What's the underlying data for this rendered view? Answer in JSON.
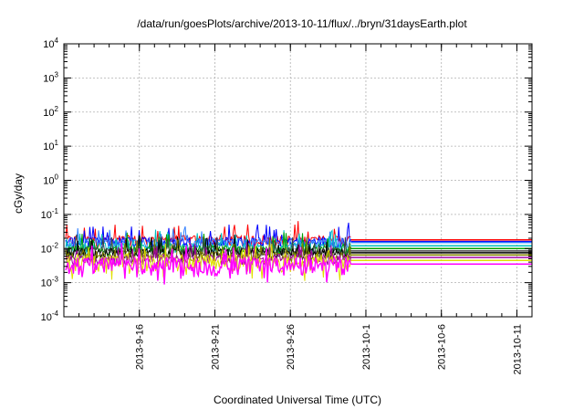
{
  "chart_data": {
    "type": "line",
    "title": "/data/run/goesPlots/archive/2013-10-11/flux/../bryn/31daysEarth.plot",
    "xlabel": "Coordinated Universal Time (UTC)",
    "ylabel": "cGy/day",
    "yscale": "log",
    "ylim": [
      0.0001,
      10000
    ],
    "xlim": [
      "2013-09-11",
      "2013-10-12"
    ],
    "y_ticks": [
      {
        "base": "10",
        "exp": "-4",
        "value": 0.0001
      },
      {
        "base": "10",
        "exp": "-3",
        "value": 0.001
      },
      {
        "base": "10",
        "exp": "-2",
        "value": 0.01
      },
      {
        "base": "10",
        "exp": "-1",
        "value": 0.1
      },
      {
        "base": "10",
        "exp": "0",
        "value": 1
      },
      {
        "base": "10",
        "exp": "1",
        "value": 10
      },
      {
        "base": "10",
        "exp": "2",
        "value": 100
      },
      {
        "base": "10",
        "exp": "3",
        "value": 1000
      },
      {
        "base": "10",
        "exp": "4",
        "value": 10000
      }
    ],
    "x_ticks": [
      {
        "label": "2013-9-16",
        "date": "2013-09-16"
      },
      {
        "label": "2013-9-21",
        "date": "2013-09-21"
      },
      {
        "label": "2013-9-26",
        "date": "2013-09-26"
      },
      {
        "label": "2013-10-1",
        "date": "2013-10-01"
      },
      {
        "label": "2013-10-6",
        "date": "2013-10-06"
      },
      {
        "label": "2013-10-11",
        "date": "2013-10-11"
      }
    ],
    "grid": true,
    "measured_end": "2013-09-30",
    "series": [
      {
        "color": "#ff0000",
        "x": [
          "2013-09-11",
          "2013-09-30",
          "2013-10-12"
        ],
        "y": [
          0.018,
          0.018,
          0.018
        ]
      },
      {
        "color": "#0000ff",
        "x": [
          "2013-09-11",
          "2013-09-30",
          "2013-10-12"
        ],
        "y": [
          0.016,
          0.016,
          0.016
        ]
      },
      {
        "color": "#3080ff",
        "x": [
          "2013-09-11",
          "2013-09-30",
          "2013-10-12"
        ],
        "y": [
          0.015,
          0.015,
          0.015
        ]
      },
      {
        "color": "#00c0c0",
        "x": [
          "2013-09-11",
          "2013-09-30",
          "2013-10-12"
        ],
        "y": [
          0.011,
          0.012,
          0.012
        ]
      },
      {
        "color": "#00a000",
        "x": [
          "2013-09-11",
          "2013-09-30",
          "2013-10-12"
        ],
        "y": [
          0.009,
          0.01,
          0.01
        ]
      },
      {
        "color": "#404040",
        "x": [
          "2013-09-11",
          "2013-09-30",
          "2013-10-12"
        ],
        "y": [
          0.008,
          0.0085,
          0.0085
        ]
      },
      {
        "color": "#000000",
        "x": [
          "2013-09-11",
          "2013-09-30",
          "2013-10-12"
        ],
        "y": [
          0.0075,
          0.0075,
          0.0075
        ]
      },
      {
        "color": "#808000",
        "x": [
          "2013-09-11",
          "2013-09-30",
          "2013-10-12"
        ],
        "y": [
          0.006,
          0.0065,
          0.0065
        ]
      },
      {
        "color": "#a000a0",
        "x": [
          "2013-09-11",
          "2013-09-30",
          "2013-10-12"
        ],
        "y": [
          0.005,
          0.0055,
          0.0055
        ]
      },
      {
        "color": "#e0e000",
        "x": [
          "2013-09-11",
          "2013-09-30",
          "2013-10-12"
        ],
        "y": [
          0.0045,
          0.0045,
          0.0045
        ]
      },
      {
        "color": "#ff00ff",
        "x": [
          "2013-09-11",
          "2013-09-30",
          "2013-10-12"
        ],
        "y": [
          0.0035,
          0.0035,
          0.0035
        ]
      }
    ]
  }
}
